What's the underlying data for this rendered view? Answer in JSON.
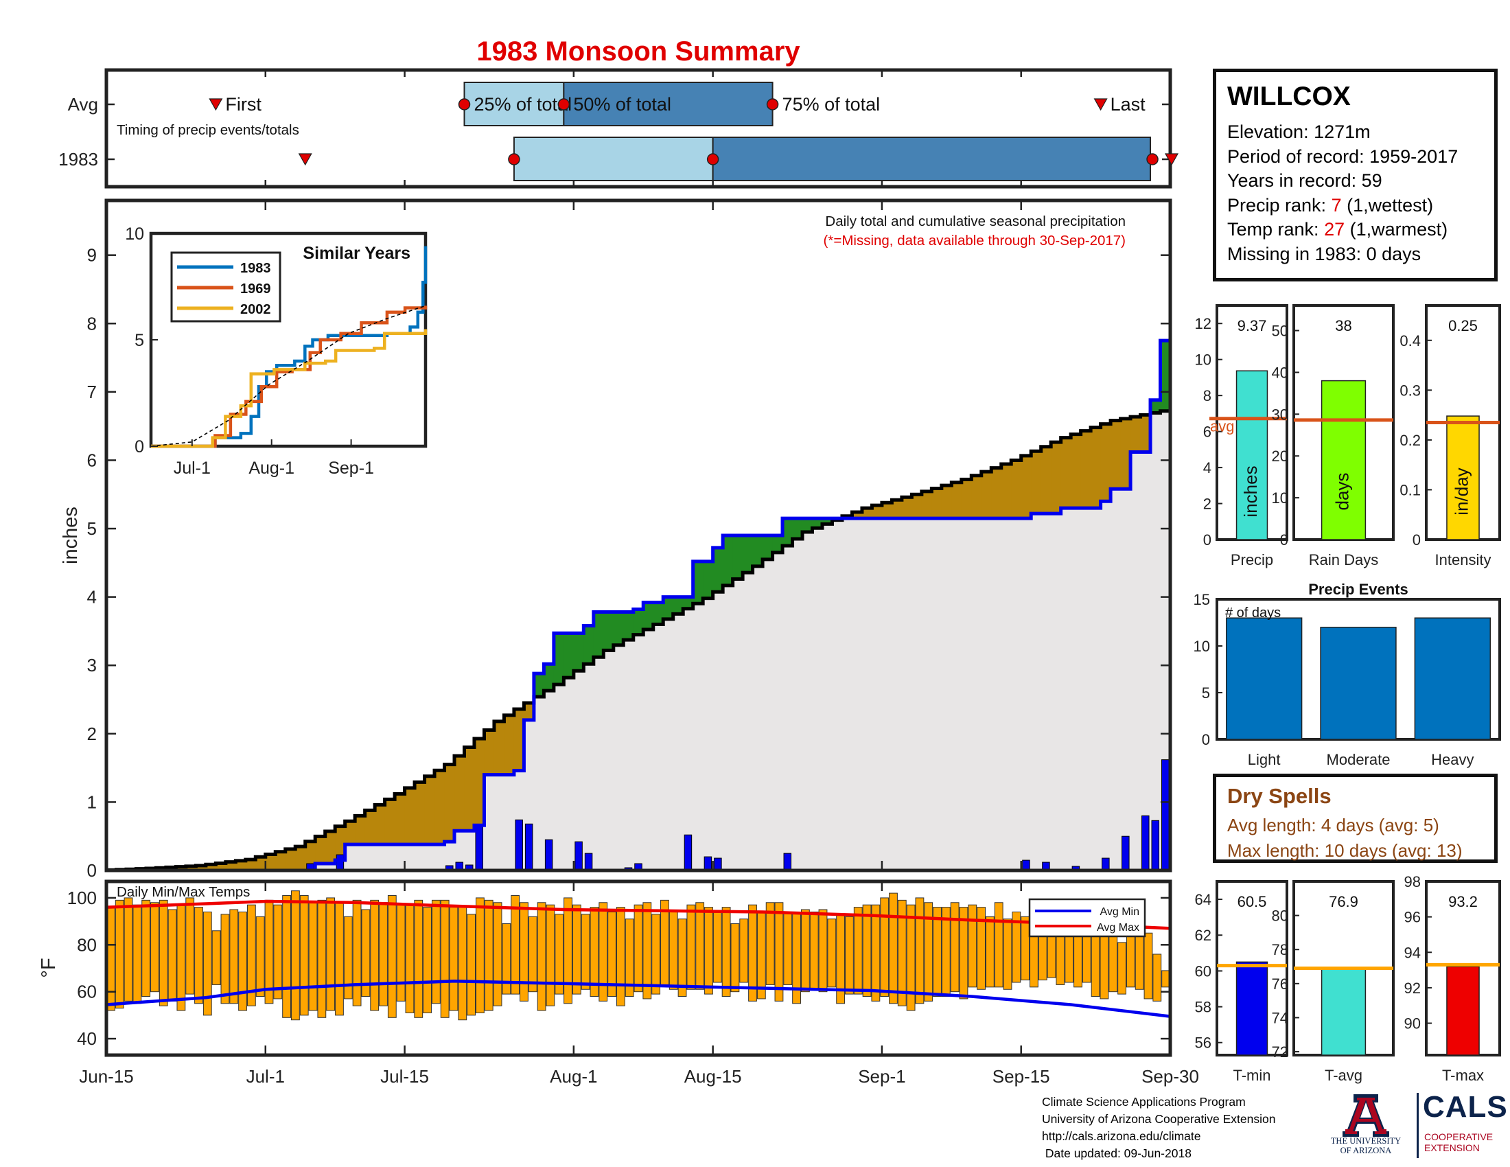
{
  "page": {
    "title": "1983 Monsoon Summary",
    "title_color": "#e00000"
  },
  "station": {
    "name": "WILLCOX",
    "elevation_label": "Elevation: 1271m",
    "period_label": "Period of record: 1959-2017",
    "years_label": "Years in record: 59",
    "precip_rank_prefix": "Precip rank: ",
    "precip_rank_value": "7",
    "precip_rank_suffix": " (1,wettest)",
    "temp_rank_prefix": "Temp rank: ",
    "temp_rank_value": "27",
    "temp_rank_suffix": " (1,warmest)",
    "missing_label": "Missing in 1983: 0 days"
  },
  "dry_spells": {
    "title": "Dry Spells",
    "avg_length": "Avg length: 4 days (avg: 5)",
    "max_length": "Max length: 10 days (avg: 13)"
  },
  "credits": {
    "line1": "Climate Science Applications Program",
    "line2": "University of Arizona Cooperative Extension",
    "line3": "http://cals.arizona.edu/climate",
    "line4": " Date updated: 09-Jun-2018"
  },
  "logos": {
    "ua_line1": "THE UNIVERSITY",
    "ua_line2": "OF ARIZONA",
    "cals": "CALS",
    "cals_sub1": "COOPERATIVE",
    "cals_sub2": "EXTENSION"
  },
  "colors": {
    "light_blue": "#a8d4e6",
    "steel_blue": "#4682b4",
    "above_avg": "#228b22",
    "below_avg": "#b8860b",
    "normal_fill": "#e8e6e6",
    "cum_line": "#0000ee",
    "bar_blue": "#0000ee",
    "temp_bar": "#ffa500",
    "avg_max": "#ee0000",
    "avg_min": "#0000ee",
    "bar_chart_blue": "#0072bd",
    "avg_orange": "#d95319",
    "accent_red": "#e00000",
    "dry_brown": "#8b4513"
  },
  "chart_data": [
    {
      "id": "timing",
      "type": "bar",
      "title": "Timing of precip events/totals",
      "rows": [
        "Avg",
        "1983"
      ],
      "xlim": [
        "Jun-15",
        "Sep-30"
      ],
      "avg": {
        "first": "Jun-26",
        "p25": "Jul-21",
        "p50": "Jul-31",
        "p75": "Aug-21",
        "last": "Sep-23",
        "labels": {
          "first": "First",
          "p25": "25% of total",
          "p50": "50% of total",
          "p75": "75% of total",
          "last": "Last"
        }
      },
      "year": {
        "first": "Jul-5",
        "p25": "Jul-26",
        "p50": "Aug-15",
        "p75": "Sep-28",
        "last": "Sep-30"
      }
    },
    {
      "id": "main-precip",
      "type": "area",
      "title": "Daily total and cumulative seasonal precipitation",
      "subtitle": "(*=Missing, data available through 30-Sep-2017)",
      "ylabel": "inches",
      "ylim": [
        0,
        9.8
      ],
      "yticks": [
        0,
        1,
        2,
        3,
        4,
        5,
        6,
        7,
        8,
        9
      ],
      "xticks": [
        "Jun-15",
        "Jul-1",
        "Jul-15",
        "Aug-1",
        "Aug-15",
        "Sep-1",
        "Sep-15",
        "Sep-30"
      ],
      "x_start": "Jun-15",
      "x_end": "Sep-30",
      "avg_cumulative": [
        [
          "Jun-15",
          0
        ],
        [
          "Jun-20",
          0.03
        ],
        [
          "Jun-25",
          0.07
        ],
        [
          "Jun-30",
          0.16
        ],
        [
          "Jul-5",
          0.35
        ],
        [
          "Jul-10",
          0.72
        ],
        [
          "Jul-15",
          1.12
        ],
        [
          "Jul-20",
          1.55
        ],
        [
          "Jul-25",
          2.18
        ],
        [
          "Jul-31",
          2.72
        ],
        [
          "Aug-5",
          3.22
        ],
        [
          "Aug-10",
          3.6
        ],
        [
          "Aug-15",
          3.98
        ],
        [
          "Aug-20",
          4.45
        ],
        [
          "Aug-25",
          4.95
        ],
        [
          "Aug-31",
          5.3
        ],
        [
          "Sep-5",
          5.5
        ],
        [
          "Sep-10",
          5.72
        ],
        [
          "Sep-15",
          6.0
        ],
        [
          "Sep-20",
          6.33
        ],
        [
          "Sep-25",
          6.58
        ],
        [
          "Sep-30",
          6.72
        ]
      ],
      "cumulative_1983": [
        [
          "Jun-15",
          0
        ],
        [
          "Jul-5",
          0
        ],
        [
          "Jul-6",
          0.1
        ],
        [
          "Jul-8",
          0.15
        ],
        [
          "Jul-9",
          0.38
        ],
        [
          "Jul-19",
          0.42
        ],
        [
          "Jul-20",
          0.58
        ],
        [
          "Jul-22",
          0.66
        ],
        [
          "Jul-23",
          1.4
        ],
        [
          "Jul-26",
          1.46
        ],
        [
          "Jul-27",
          2.2
        ],
        [
          "Jul-28",
          2.88
        ],
        [
          "Jul-29",
          3.02
        ],
        [
          "Jul-30",
          3.47
        ],
        [
          "Aug-2",
          3.58
        ],
        [
          "Aug-3",
          3.78
        ],
        [
          "Aug-7",
          3.82
        ],
        [
          "Aug-8",
          3.92
        ],
        [
          "Aug-10",
          4.0
        ],
        [
          "Aug-13",
          4.52
        ],
        [
          "Aug-15",
          4.72
        ],
        [
          "Aug-16",
          4.9
        ],
        [
          "Aug-22",
          5.15
        ],
        [
          "Sep-16",
          5.22
        ],
        [
          "Sep-19",
          5.3
        ],
        [
          "Sep-23",
          5.4
        ],
        [
          "Sep-24",
          5.58
        ],
        [
          "Sep-26",
          6.12
        ],
        [
          "Sep-28",
          6.88
        ],
        [
          "Sep-29",
          7.75
        ],
        [
          "Sep-30",
          9.37
        ]
      ],
      "daily_1983": [
        [
          "Jul-6",
          0.1
        ],
        [
          "Jul-9",
          0.23
        ],
        [
          "Jul-20",
          0.07
        ],
        [
          "Jul-21",
          0.12
        ],
        [
          "Jul-22",
          0.08
        ],
        [
          "Jul-23",
          0.65
        ],
        [
          "Jul-27",
          0.74
        ],
        [
          "Jul-28",
          0.68
        ],
        [
          "Jul-30",
          0.45
        ],
        [
          "Aug-2",
          0.42
        ],
        [
          "Aug-3",
          0.25
        ],
        [
          "Aug-7",
          0.04
        ],
        [
          "Aug-8",
          0.1
        ],
        [
          "Aug-13",
          0.52
        ],
        [
          "Aug-15",
          0.2
        ],
        [
          "Aug-16",
          0.18
        ],
        [
          "Aug-23",
          0.25
        ],
        [
          "Sep-16",
          0.15
        ],
        [
          "Sep-18",
          0.12
        ],
        [
          "Sep-21",
          0.06
        ],
        [
          "Sep-24",
          0.18
        ],
        [
          "Sep-26",
          0.5
        ],
        [
          "Sep-28",
          0.8
        ],
        [
          "Sep-29",
          0.73
        ],
        [
          "Sep-30",
          1.62
        ]
      ]
    },
    {
      "id": "similar-years",
      "type": "line",
      "title": "Similar Years",
      "ylim": [
        0,
        10
      ],
      "yticks": [
        0,
        5,
        10
      ],
      "xticks": [
        "Jul-1",
        "Aug-1",
        "Sep-1"
      ],
      "series": [
        {
          "name": "1983",
          "color": "#0072bd",
          "points": [
            [
              "Jun-15",
              0
            ],
            [
              "Jul-7",
              0
            ],
            [
              "Jul-10",
              0.4
            ],
            [
              "Jul-20",
              0.6
            ],
            [
              "Jul-24",
              1.4
            ],
            [
              "Jul-27",
              2.8
            ],
            [
              "Jul-30",
              3.5
            ],
            [
              "Aug-3",
              3.8
            ],
            [
              "Aug-10",
              4.0
            ],
            [
              "Aug-14",
              4.7
            ],
            [
              "Aug-17",
              5.0
            ],
            [
              "Aug-23",
              5.2
            ],
            [
              "Sep-15",
              5.3
            ],
            [
              "Sep-24",
              5.6
            ],
            [
              "Sep-27",
              6.3
            ],
            [
              "Sep-29",
              7.7
            ],
            [
              "Sep-30",
              9.4
            ]
          ]
        },
        {
          "name": "1969",
          "color": "#d95319",
          "points": [
            [
              "Jun-15",
              0
            ],
            [
              "Jul-5",
              0
            ],
            [
              "Jul-10",
              0.5
            ],
            [
              "Jul-16",
              1.5
            ],
            [
              "Jul-22",
              2.1
            ],
            [
              "Jul-28",
              2.8
            ],
            [
              "Aug-3",
              3.5
            ],
            [
              "Aug-9",
              3.6
            ],
            [
              "Aug-16",
              4.4
            ],
            [
              "Aug-20",
              5.0
            ],
            [
              "Aug-28",
              5.3
            ],
            [
              "Sep-5",
              5.8
            ],
            [
              "Sep-15",
              6.3
            ],
            [
              "Sep-22",
              6.5
            ],
            [
              "Sep-30",
              6.6
            ]
          ]
        },
        {
          "name": "2002",
          "color": "#edb120",
          "points": [
            [
              "Jun-15",
              0
            ],
            [
              "Jul-6",
              0
            ],
            [
              "Jul-9",
              0.4
            ],
            [
              "Jul-14",
              1.4
            ],
            [
              "Jul-20",
              1.9
            ],
            [
              "Jul-24",
              3.4
            ],
            [
              "Aug-2",
              3.6
            ],
            [
              "Aug-8",
              3.6
            ],
            [
              "Aug-14",
              3.9
            ],
            [
              "Aug-22",
              4.0
            ],
            [
              "Aug-26",
              4.5
            ],
            [
              "Sep-10",
              4.6
            ],
            [
              "Sep-14",
              5.3
            ],
            [
              "Sep-30",
              5.5
            ]
          ]
        },
        {
          "name": "",
          "color": "#000000",
          "dashed": true,
          "points": [
            [
              "Jun-15",
              0
            ],
            [
              "Jul-1",
              0.2
            ],
            [
              "Jul-15",
              1.2
            ],
            [
              "Jul-31",
              2.9
            ],
            [
              "Aug-15",
              4.0
            ],
            [
              "Aug-31",
              5.3
            ],
            [
              "Sep-15",
              6.0
            ],
            [
              "Sep-30",
              6.6
            ]
          ]
        }
      ]
    },
    {
      "id": "temps",
      "type": "bar",
      "title": "Daily Min/Max Temps",
      "ylabel": "°F",
      "ylim": [
        33,
        107
      ],
      "yticks": [
        40,
        60,
        80,
        100
      ],
      "series_names": {
        "avg_min": "Avg Min",
        "avg_max": "Avg Max"
      },
      "avg_max": [
        [
          "Jun-15",
          96
        ],
        [
          "Jun-25",
          97.5
        ],
        [
          "Jul-1",
          98.5
        ],
        [
          "Jul-10",
          98
        ],
        [
          "Jul-20",
          96.5
        ],
        [
          "Jul-31",
          95
        ],
        [
          "Aug-10",
          94.5
        ],
        [
          "Aug-20",
          94
        ],
        [
          "Aug-31",
          92.5
        ],
        [
          "Sep-10",
          90.5
        ],
        [
          "Sep-20",
          89
        ],
        [
          "Sep-30",
          87
        ]
      ],
      "avg_min": [
        [
          "Jun-15",
          54.5
        ],
        [
          "Jun-25",
          57.5
        ],
        [
          "Jul-1",
          61
        ],
        [
          "Jul-10",
          63
        ],
        [
          "Jul-20",
          64.5
        ],
        [
          "Jul-31",
          63.5
        ],
        [
          "Aug-10",
          62.5
        ],
        [
          "Aug-20",
          61.5
        ],
        [
          "Aug-31",
          60.5
        ],
        [
          "Sep-10",
          58
        ],
        [
          "Sep-20",
          54.5
        ],
        [
          "Sep-30",
          49.5
        ]
      ],
      "tmax_1983": [
        96,
        99,
        100,
        97,
        99,
        98,
        99,
        95,
        97,
        100,
        96,
        94,
        86,
        93,
        95,
        94,
        97,
        92,
        99,
        97,
        101,
        103,
        101,
        98,
        99,
        100,
        98,
        92,
        99,
        95,
        99,
        98,
        101,
        97,
        97,
        99,
        96,
        99,
        99,
        96,
        96,
        93,
        100,
        99,
        98,
        89,
        101,
        98,
        92,
        98,
        97,
        93,
        100,
        97,
        93,
        96,
        98,
        94,
        96,
        91,
        97,
        98,
        93,
        99,
        94,
        91,
        97,
        98,
        96,
        94,
        96,
        89,
        91,
        97,
        94,
        98,
        98,
        94,
        94,
        95,
        94,
        95,
        91,
        93,
        92,
        96,
        97,
        97,
        100,
        102,
        99,
        97,
        100,
        98,
        96,
        96,
        98,
        96,
        97,
        96,
        92,
        98,
        91,
        94,
        92,
        90,
        90,
        88,
        94,
        89,
        85,
        87,
        88,
        86,
        86,
        81,
        87,
        89,
        85,
        76,
        69
      ],
      "tmin_1983": [
        52,
        53,
        56,
        55,
        58,
        60,
        54,
        56,
        52,
        59,
        55,
        50,
        63,
        55,
        55,
        52,
        54,
        58,
        55,
        57,
        49,
        48,
        50,
        52,
        49,
        52,
        50,
        57,
        54,
        58,
        52,
        54,
        49,
        56,
        51,
        49,
        51,
        55,
        49,
        52,
        48,
        50,
        51,
        52,
        54,
        59,
        59,
        56,
        60,
        52,
        54,
        59,
        55,
        59,
        61,
        58,
        56,
        58,
        54,
        58,
        60,
        57,
        59,
        63,
        61,
        58,
        61,
        61,
        59,
        64,
        58,
        60,
        64,
        56,
        57,
        63,
        56,
        63,
        55,
        60,
        61,
        60,
        62,
        55,
        59,
        59,
        58,
        56,
        58,
        55,
        54,
        52,
        55,
        56,
        58,
        58,
        60,
        57,
        62,
        61,
        62,
        62,
        61,
        64,
        65,
        62,
        65,
        66,
        63,
        64,
        62,
        64,
        58,
        57,
        60,
        59,
        62,
        61,
        57,
        56,
        62
      ]
    },
    {
      "id": "precip-bar",
      "type": "bar",
      "label": "Precip",
      "value_label": "9.37",
      "value": 9.37,
      "avg": 6.72,
      "avg_label": "avg",
      "unit": "inches",
      "ylim": [
        0,
        13
      ],
      "yticks": [
        0,
        2,
        4,
        6,
        8,
        10,
        12
      ],
      "color": "#40e0d0"
    },
    {
      "id": "raindays-bar",
      "type": "bar",
      "label": "Rain Days",
      "value_label": "38",
      "value": 38,
      "avg": 28.6,
      "unit": "days",
      "ylim": [
        0,
        56
      ],
      "yticks": [
        0,
        10,
        20,
        30,
        40,
        50
      ],
      "color": "#7fff00"
    },
    {
      "id": "intensity-bar",
      "type": "bar",
      "label": "Intensity",
      "value_label": "0.25",
      "value": 0.248,
      "avg": 0.235,
      "unit": "in/day",
      "ylim": [
        0,
        0.47
      ],
      "yticks": [
        0,
        0.1,
        0.2,
        0.3,
        0.4
      ],
      "color": "#ffd700"
    },
    {
      "id": "precip-events",
      "type": "bar",
      "title": "Precip Events",
      "ylabel": "# of days",
      "categories": [
        "Light",
        "Moderate",
        "Heavy"
      ],
      "values": [
        13,
        12,
        13
      ],
      "ylim": [
        0,
        15
      ],
      "yticks": [
        0,
        5,
        10,
        15
      ],
      "color": "#0072bd"
    },
    {
      "id": "tmin-bar",
      "type": "bar",
      "label": "T-min",
      "value_label": "60.5",
      "value": 60.5,
      "avg": 60.3,
      "ylim": [
        55.3,
        65
      ],
      "yticks": [
        56,
        58,
        60,
        62,
        64
      ],
      "color": "#0000ee"
    },
    {
      "id": "tavg-bar",
      "type": "bar",
      "label": "T-avg",
      "value_label": "76.9",
      "value": 76.9,
      "avg": 76.9,
      "ylim": [
        71.8,
        82
      ],
      "yticks": [
        72,
        74,
        76,
        78,
        80
      ],
      "color": "#40e0d0"
    },
    {
      "id": "tmax-bar",
      "type": "bar",
      "label": "T-max",
      "value_label": "93.2",
      "value": 93.2,
      "avg": 93.3,
      "ylim": [
        88.2,
        98
      ],
      "yticks": [
        90,
        92,
        94,
        96,
        98
      ],
      "color": "#ee0000"
    }
  ]
}
